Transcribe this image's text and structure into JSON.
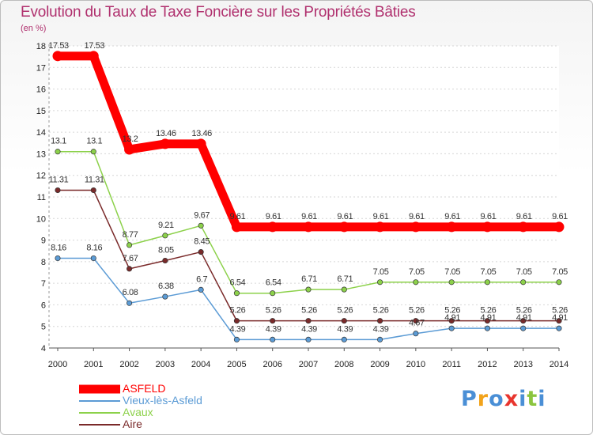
{
  "title": "Evolution du Taux de Taxe Foncière sur les Propriétés Bâties",
  "unit_label": "(en %)",
  "logo": [
    {
      "char": "P",
      "color": "#4a8fd6"
    },
    {
      "char": "r",
      "color": "#f2a31b"
    },
    {
      "char": "o",
      "color": "#4a8fd6"
    },
    {
      "char": "x",
      "color": "#e8352e"
    },
    {
      "char": "i",
      "color": "#4a8fd6"
    },
    {
      "char": "t",
      "color": "#8bc53f"
    },
    {
      "char": "i",
      "color": "#4a8fd6"
    }
  ],
  "chart_data": {
    "type": "line",
    "title": "Evolution du Taux de Taxe Foncière sur les Propriétés Bâties",
    "ylabel": "(en %)",
    "xlabel": "",
    "ylim": [
      4,
      18
    ],
    "yticks": [
      4,
      5,
      6,
      7,
      8,
      9,
      10,
      11,
      12,
      13,
      14,
      15,
      16,
      17,
      18
    ],
    "categories": [
      "2000",
      "2001",
      "2002",
      "2003",
      "2004",
      "2005",
      "2006",
      "2007",
      "2008",
      "2009",
      "2010",
      "2011",
      "2012",
      "2013",
      "2014"
    ],
    "series": [
      {
        "name": "ASFELD",
        "color": "#ff0000",
        "emphasis": true,
        "values": [
          17.53,
          17.53,
          13.2,
          13.46,
          13.46,
          9.61,
          9.61,
          9.61,
          9.61,
          9.61,
          9.61,
          9.61,
          9.61,
          9.61,
          9.61
        ],
        "labels": [
          "17.53",
          "17.53",
          "13.2",
          "13.46",
          "13.46",
          "9.61",
          "9.61",
          "9.61",
          "9.61",
          "9.61",
          "9.61",
          "9.61",
          "9.61",
          "9.61",
          "9.61"
        ]
      },
      {
        "name": "Vieux-lès-Asfeld",
        "color": "#5b9bd5",
        "values": [
          8.16,
          8.16,
          6.08,
          6.38,
          6.7,
          4.39,
          4.39,
          4.39,
          4.39,
          4.39,
          4.67,
          4.91,
          4.91,
          4.91,
          4.91
        ],
        "labels": [
          "8.16",
          "8.16",
          "6.08",
          "6.38",
          "6.7",
          "4.39",
          "4.39",
          "4.39",
          "4.39",
          "4.39",
          "4.67",
          "4.91",
          "4.91",
          "4.91",
          "4.91"
        ]
      },
      {
        "name": "Avaux",
        "color": "#8cd14a",
        "values": [
          13.1,
          13.1,
          8.77,
          9.21,
          9.67,
          6.54,
          6.54,
          6.71,
          6.71,
          7.05,
          7.05,
          7.05,
          7.05,
          7.05,
          7.05
        ],
        "labels": [
          "13.1",
          "13.1",
          "8.77",
          "9.21",
          "9.67",
          "6.54",
          "6.54",
          "6.71",
          "6.71",
          "7.05",
          "7.05",
          "7.05",
          "7.05",
          "7.05",
          "7.05"
        ]
      },
      {
        "name": "Aire",
        "color": "#7a2a2a",
        "values": [
          11.31,
          11.31,
          7.67,
          8.05,
          8.45,
          5.26,
          5.26,
          5.26,
          5.26,
          5.26,
          5.26,
          5.26,
          5.26,
          5.26,
          5.26
        ],
        "labels": [
          "11.31",
          "11.31",
          "7.67",
          "8.05",
          "8.45",
          "5.26",
          "5.26",
          "5.26",
          "5.26",
          "5.26",
          "5.26",
          "5.26",
          "5.26",
          "5.26",
          "5.26"
        ]
      }
    ]
  }
}
